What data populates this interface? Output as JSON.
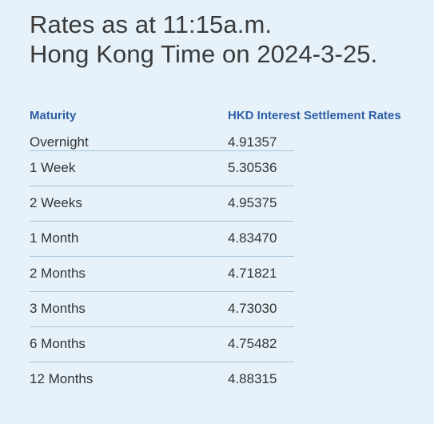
{
  "heading": {
    "line1": "Rates as at 11:15a.m.",
    "line2": "Hong Kong Time on 2024-3-25."
  },
  "table": {
    "headers": {
      "maturity": "Maturity",
      "rate": "HKD Interest Settlement Rates"
    },
    "rows": [
      {
        "maturity": "Overnight",
        "rate": "4.91357"
      },
      {
        "maturity": "1 Week",
        "rate": "5.30536"
      },
      {
        "maturity": "2 Weeks",
        "rate": "4.95375"
      },
      {
        "maturity": "1 Month",
        "rate": "4.83470"
      },
      {
        "maturity": "2 Months",
        "rate": "4.71821"
      },
      {
        "maturity": "3 Months",
        "rate": "4.73030"
      },
      {
        "maturity": "6 Months",
        "rate": "4.75482"
      },
      {
        "maturity": "12 Months",
        "rate": "4.88315"
      }
    ]
  },
  "colors": {
    "background": "#e6f1f9",
    "header_text": "#2e5fa6",
    "divider": "#a9c6dc",
    "body_text": "#333333"
  }
}
